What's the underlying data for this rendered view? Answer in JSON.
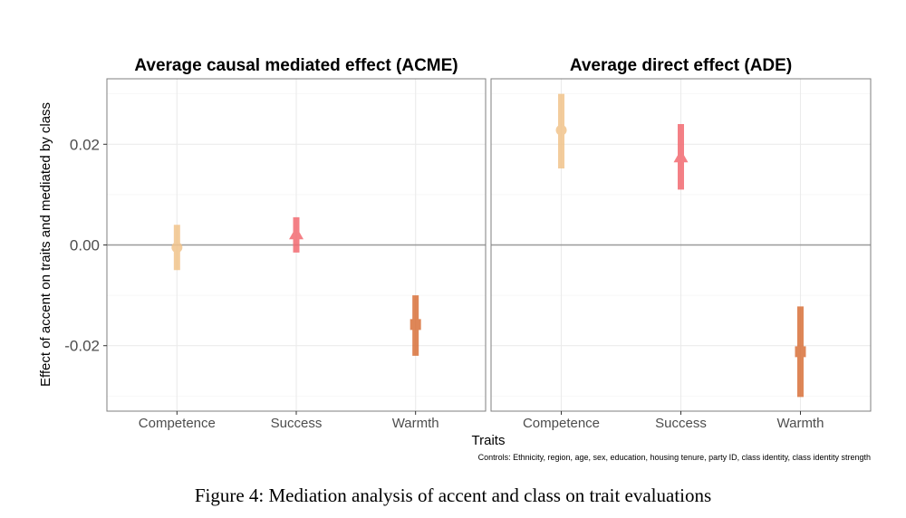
{
  "colors": {
    "Competence": "#f2c48b",
    "Success": "#f36b72",
    "Warmth": "#d9713a",
    "zero_line": "#999999",
    "grid": "#ebebeb",
    "panel_border": "#7f7f7f"
  },
  "chart_data": {
    "type": "scatter",
    "subtype": "pointrange",
    "xlabel": "Traits",
    "ylabel": "Effect of accent on traits and mediated by class",
    "ylim": [
      -0.033,
      0.033
    ],
    "yticks": [
      "0.02",
      "0.00",
      "-0.02"
    ],
    "ytick_values": [
      0.02,
      0.0,
      -0.02
    ],
    "zero_line": 0,
    "grid": true,
    "categories": [
      "Competence",
      "Success",
      "Warmth"
    ],
    "markers": {
      "Competence": "circle",
      "Success": "triangle",
      "Warmth": "square"
    },
    "controls_note": "Controls: Ethnicity, region, age, sex, education, housing tenure, party ID, class identity, class identity strength",
    "panels": [
      {
        "title": "Average causal mediated effect (ACME)",
        "points": [
          {
            "trait": "Competence",
            "estimate": -0.0005,
            "lower": -0.005,
            "upper": 0.004
          },
          {
            "trait": "Success",
            "estimate": 0.0022,
            "lower": -0.0015,
            "upper": 0.0055
          },
          {
            "trait": "Warmth",
            "estimate": -0.0158,
            "lower": -0.022,
            "upper": -0.01
          }
        ]
      },
      {
        "title": "Average direct effect (ADE)",
        "points": [
          {
            "trait": "Competence",
            "estimate": 0.0228,
            "lower": 0.0152,
            "upper": 0.03
          },
          {
            "trait": "Success",
            "estimate": 0.0175,
            "lower": 0.011,
            "upper": 0.024
          },
          {
            "trait": "Warmth",
            "estimate": -0.0212,
            "lower": -0.0302,
            "upper": -0.0122
          }
        ]
      }
    ]
  },
  "caption": "Figure 4: Mediation analysis of accent and class on trait evaluations"
}
